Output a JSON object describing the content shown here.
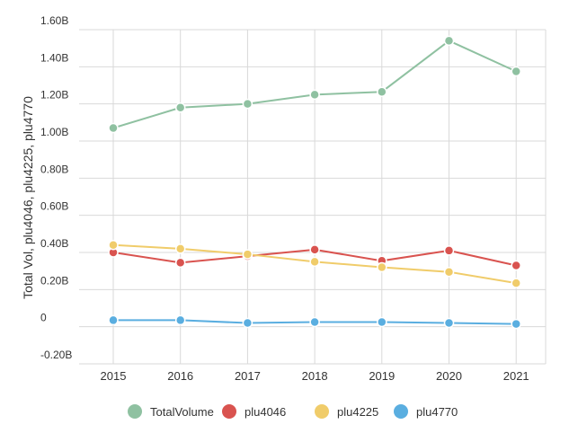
{
  "chart_data": {
    "type": "line",
    "x": [
      "2015",
      "2016",
      "2017",
      "2018",
      "2019",
      "2020",
      "2021"
    ],
    "ylabel": "Total Vol, plu4046, plu4225, plu4770",
    "xlabel": "",
    "ylim": [
      -0.2,
      1.6
    ],
    "y_ticks": [
      "1.60B",
      "1.40B",
      "1.20B",
      "1.00B",
      "0.80B",
      "0.60B",
      "0.40B",
      "0.20B",
      "0",
      "-0.20B"
    ],
    "y_tick_values": [
      1.6,
      1.4,
      1.2,
      1.0,
      0.8,
      0.6,
      0.4,
      0.2,
      0,
      -0.2
    ],
    "grid": true,
    "legend_position": "bottom",
    "series": [
      {
        "name": "TotalVolume",
        "color": "#8fc1a1",
        "values": [
          1.07,
          1.18,
          1.2,
          1.25,
          1.265,
          1.54,
          1.375
        ]
      },
      {
        "name": "plu4046",
        "color": "#d9534f",
        "values": [
          0.4,
          0.345,
          0.38,
          0.415,
          0.355,
          0.41,
          0.33
        ]
      },
      {
        "name": "plu4225",
        "color": "#f0cc6a",
        "values": [
          0.44,
          0.42,
          0.39,
          0.35,
          0.32,
          0.295,
          0.235
        ]
      },
      {
        "name": "plu4770",
        "color": "#5aaee0",
        "values": [
          0.035,
          0.035,
          0.02,
          0.025,
          0.025,
          0.02,
          0.015
        ]
      }
    ]
  }
}
